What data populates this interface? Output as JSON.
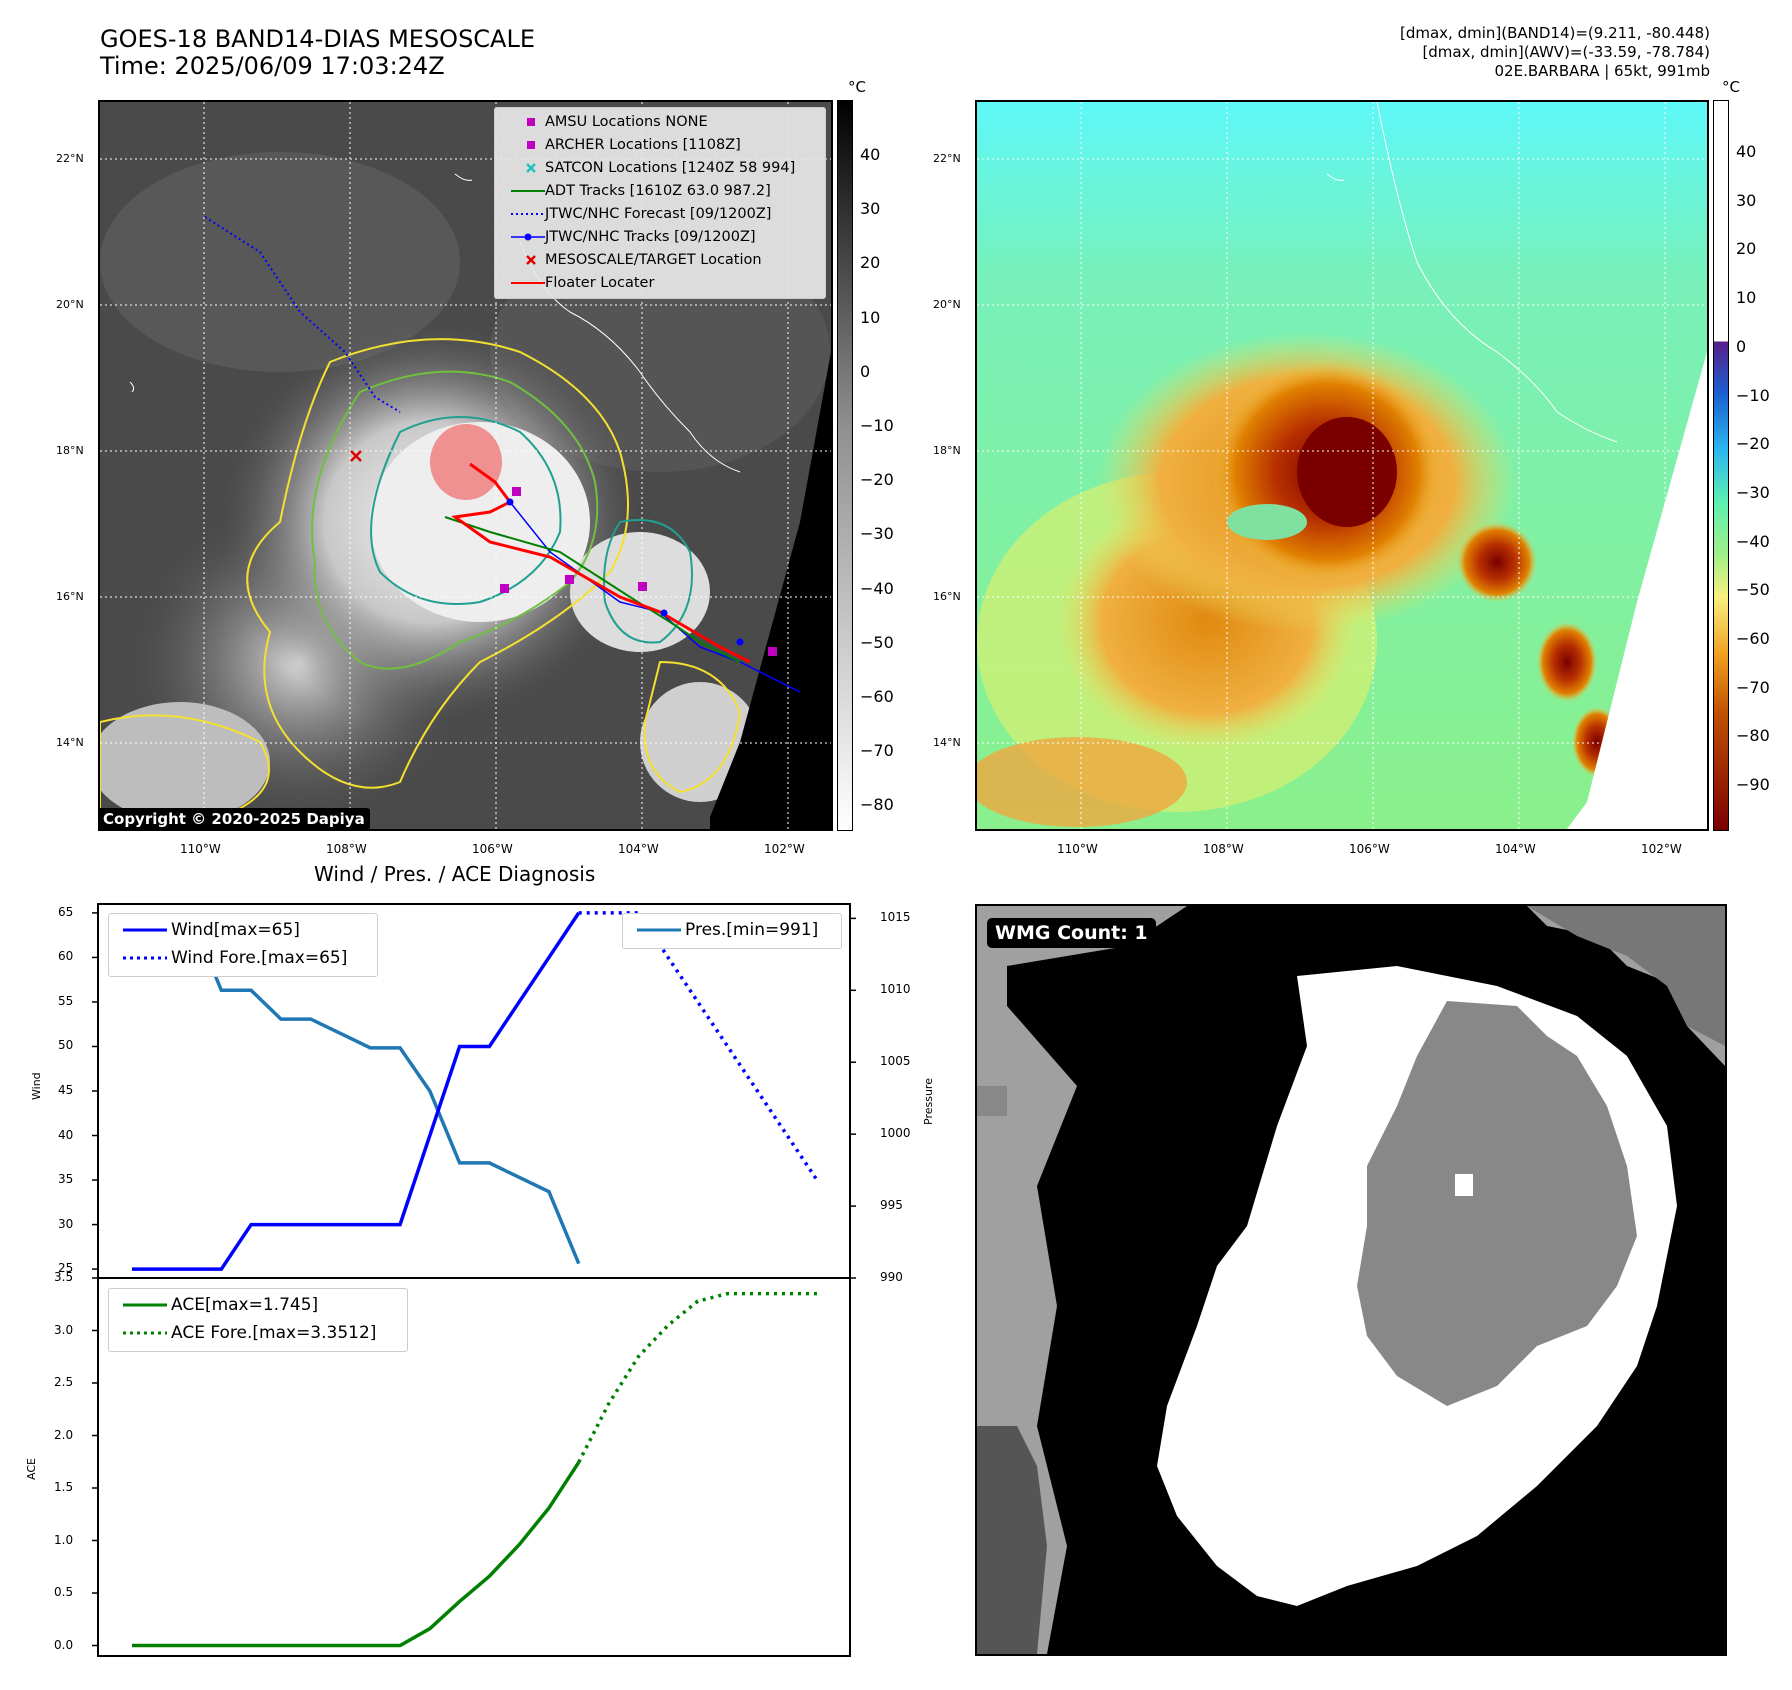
{
  "header": {
    "title_line1": "GOES-18 BAND14-DIAS MESOSCALE",
    "title_line2": "Time: 2025/06/09 17:03:24Z",
    "stat_line1": "[dmax, dmin](BAND14)=(9.211, -80.448)",
    "stat_line2": "[dmax, dmin](AWV)=(-33.59, -78.784)",
    "stat_line3": "02E.BARBARA | 65kt, 991mb"
  },
  "ir_panel": {
    "unit": "°C",
    "colorbar_ticks": [
      "40",
      "30",
      "20",
      "10",
      "0",
      "−10",
      "−20",
      "−30",
      "−40",
      "−50",
      "−60",
      "−70",
      "−80"
    ],
    "lat_labels": [
      "22°N",
      "20°N",
      "18°N",
      "16°N",
      "14°N"
    ],
    "lon_labels": [
      "110°W",
      "108°W",
      "106°W",
      "104°W",
      "102°W"
    ],
    "copyright": "Copyright © 2020-2025 Dapiya",
    "legend": [
      {
        "label": "AMSU Locations NONE",
        "color": "#c000c0",
        "symbol": "square"
      },
      {
        "label": "ARCHER Locations [1108Z]",
        "color": "#c000c0",
        "symbol": "square"
      },
      {
        "label": "SATCON Locations [1240Z 58 994]",
        "color": "#20c0c0",
        "symbol": "x"
      },
      {
        "label": "ADT Tracks [1610Z 63.0 987.2]",
        "color": "#008000",
        "symbol": "line"
      },
      {
        "label": "JTWC/NHC Forecast [09/1200Z]",
        "color": "#0000ff",
        "symbol": "dotted"
      },
      {
        "label": "JTWC/NHC Tracks [09/1200Z]",
        "color": "#0000ff",
        "symbol": "line-dot"
      },
      {
        "label": "MESOSCALE/TARGET Location",
        "color": "#ff0000",
        "symbol": "x"
      },
      {
        "label": "Floater Locater",
        "color": "#ff0000",
        "symbol": "line"
      }
    ]
  },
  "awv_panel": {
    "unit": "°C",
    "colorbar_ticks": [
      "40",
      "30",
      "20",
      "10",
      "0",
      "−10",
      "−20",
      "−30",
      "−40",
      "−50",
      "−60",
      "−70",
      "−80",
      "−90"
    ],
    "lat_labels": [
      "22°N",
      "20°N",
      "18°N",
      "16°N",
      "14°N"
    ],
    "lon_labels": [
      "110°W",
      "108°W",
      "106°W",
      "104°W",
      "102°W"
    ]
  },
  "diag": {
    "title": "Wind / Pres. / ACE Diagnosis",
    "wind_ylabel": "Wind",
    "pres_ylabel": "Pressure",
    "ace_ylabel": "ACE",
    "wind_ticks": [
      "65",
      "60",
      "55",
      "50",
      "45",
      "40",
      "35",
      "30",
      "25"
    ],
    "pres_ticks": [
      "1015",
      "1010",
      "1005",
      "1000",
      "995",
      "990"
    ],
    "ace_ticks": [
      "3.5",
      "3.0",
      "2.5",
      "2.0",
      "1.5",
      "1.0",
      "0.5",
      "0.0"
    ],
    "legend_wind": "Wind[max=65]",
    "legend_wind_fore": "Wind Fore.[max=65]",
    "legend_pres": "Pres.[min=991]",
    "legend_ace": "ACE[max=1.745]",
    "legend_ace_fore": "ACE Fore.[max=3.3512]",
    "colors": {
      "wind": "#0000ff",
      "pres": "#1f77b4",
      "ace": "#008000"
    }
  },
  "wmg_panel": {
    "label": "WMG Count: 1"
  },
  "chart_data": [
    {
      "type": "line",
      "title": "Wind / Pres. / ACE Diagnosis",
      "ylabel": "Wind",
      "ylim": [
        24,
        66
      ],
      "series": [
        {
          "name": "Wind[max=65]",
          "x": [
            0,
            1,
            2,
            3,
            4,
            5,
            6,
            7,
            8,
            9,
            10,
            11,
            12,
            13,
            14,
            15
          ],
          "values": [
            25,
            25,
            25,
            25,
            30,
            30,
            30,
            30,
            30,
            30,
            40,
            50,
            50,
            55,
            60,
            65
          ]
        },
        {
          "name": "Wind Fore.[max=65]",
          "x": [
            15,
            16,
            17,
            18,
            19,
            20,
            21,
            22,
            23
          ],
          "values": [
            65,
            65,
            65,
            60,
            55,
            50,
            45,
            40,
            35
          ]
        }
      ]
    },
    {
      "type": "line",
      "ylabel": "Pressure",
      "ylim": [
        990,
        1016
      ],
      "series": [
        {
          "name": "Pres.[min=991]",
          "x": [
            0,
            1,
            2,
            3,
            4,
            5,
            6,
            7,
            8,
            9,
            10,
            11,
            12,
            13,
            14,
            15
          ],
          "values": [
            1015,
            1015,
            1015,
            1010,
            1010,
            1008,
            1008,
            1007,
            1006,
            1006,
            1003,
            998,
            998,
            997,
            996,
            991
          ]
        }
      ]
    },
    {
      "type": "line",
      "ylabel": "ACE",
      "ylim": [
        -0.1,
        3.5
      ],
      "series": [
        {
          "name": "ACE[max=1.745]",
          "x": [
            0,
            1,
            2,
            3,
            4,
            5,
            6,
            7,
            8,
            9,
            10,
            11,
            12,
            13,
            14,
            15
          ],
          "values": [
            0,
            0,
            0,
            0,
            0,
            0,
            0,
            0,
            0,
            0,
            0.16,
            0.42,
            0.66,
            0.96,
            1.31,
            1.745
          ]
        },
        {
          "name": "ACE Fore.[max=3.3512]",
          "x": [
            15,
            16,
            17,
            18,
            19,
            20,
            21,
            22,
            23
          ],
          "values": [
            1.745,
            2.3,
            2.75,
            3.05,
            3.28,
            3.3512,
            3.3512,
            3.3512,
            3.3512
          ]
        }
      ]
    }
  ]
}
